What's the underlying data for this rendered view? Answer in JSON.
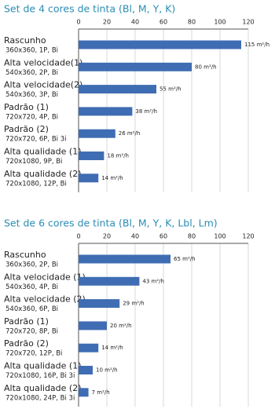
{
  "chart_data": [
    {
      "type": "bar",
      "orientation": "horizontal",
      "title": "Set de 4 cores de tinta (Bl, M, Y, K)",
      "categories": [
        "Rascunho",
        "Alta velocidade(1)",
        "Alta velocidade(2)",
        "Padrão (1)",
        "Padrão (2)",
        "Alta qualidade (1)",
        "Alta qualidade (2)"
      ],
      "category_details": [
        "360x360, 1P, Bi",
        "540x360, 2P, Bi",
        "540x360, 3P, Bi",
        "720x720, 4P, Bi",
        "720x720, 6P, Bi 3i",
        "720x1080, 9P, Bi",
        "720x1080, 12P, Bi"
      ],
      "values": [
        115,
        80,
        55,
        38,
        26,
        18,
        14
      ],
      "value_labels": [
        "115 m²/h",
        "80 m²/h",
        "55 m²/h",
        "38 m²/h",
        "26 m²/h",
        "18 m²/h",
        "14 m²/h"
      ],
      "color": "#3f6db3",
      "xlim": [
        0,
        120
      ],
      "xticks": [
        0,
        20,
        40,
        60,
        80,
        100,
        120
      ],
      "grid": true
    },
    {
      "type": "bar",
      "orientation": "horizontal",
      "title": "Set de 6 cores de tinta (Bl, M, Y, K, Lbl, Lm)",
      "categories": [
        "Rascunho",
        "Alta velocidade (1)",
        "Alta velocidade (2)",
        "Padrão (1)",
        "Padrão (2)",
        "Alta qualidade (1)",
        "Alta qualidade (2)"
      ],
      "category_details": [
        "360x360, 2P, Bi",
        "540x360, 4P, Bi",
        "540x360, 6P, Bi",
        "720x720, 8P, Bi",
        "720x720, 12P, Bi",
        "720x1080, 16P, Bi 3i",
        "720x1080, 24P, Bi 3i"
      ],
      "values": [
        65,
        43,
        29,
        20,
        14,
        10,
        7
      ],
      "value_labels": [
        "65 m²/h",
        "43 m²/h",
        "29 m²/h",
        "20 m²/h",
        "14 m²/h",
        "10 m²/h",
        "7 m²/h"
      ],
      "color": "#3f6db3",
      "xlim": [
        0,
        120
      ],
      "xticks": [
        0,
        20,
        40,
        60,
        80,
        100,
        120
      ],
      "grid": true
    }
  ]
}
